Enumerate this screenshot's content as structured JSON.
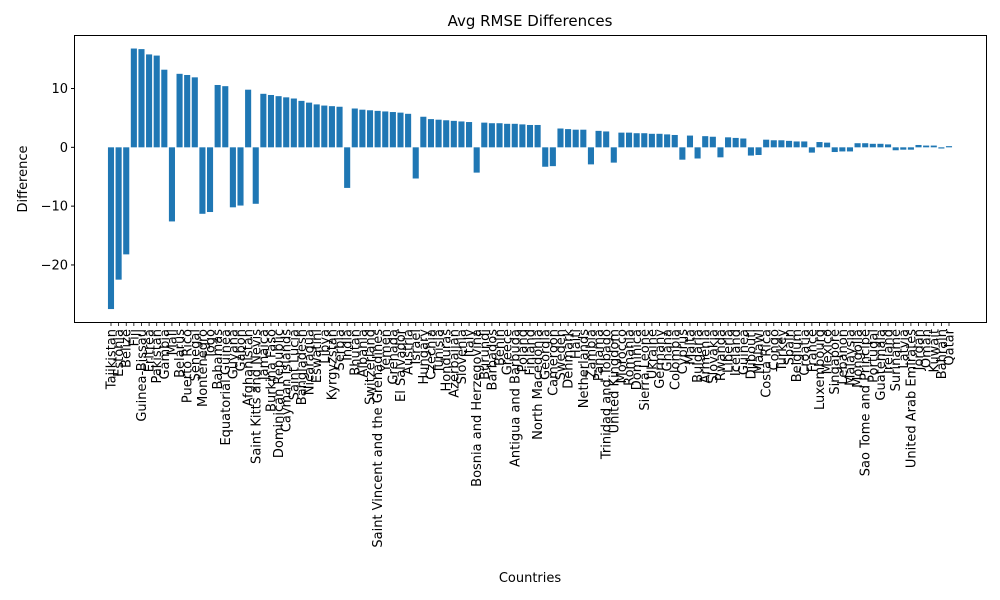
{
  "chart_data": {
    "type": "bar",
    "title": "Avg RMSE Differences",
    "xlabel": "Countries",
    "ylabel": "Difference",
    "ylim": [
      -29.7,
      19.1
    ],
    "yticks": [
      -20,
      -10,
      0,
      10
    ],
    "ytick_labels": [
      "−20",
      "−10",
      "0",
      "10"
    ],
    "grid": false,
    "color": "#1f77b4",
    "categories": [
      "Tajikistan",
      "Estonia",
      "Belize",
      "Fiji",
      "Guinea-Bissau",
      "Eritrea",
      "Pakistan",
      "Gambia",
      "Mali",
      "Belarus",
      "Puerto Rico",
      "Senegal",
      "Montenegro",
      "Togo",
      "Bahamas",
      "Equatorial Guinea",
      "Guyana",
      "Gabon",
      "Afghanistan",
      "Saint Kitts and Nevis",
      "Jamaica",
      "Burkina Faso",
      "Dominican Republic",
      "Cayman Islands",
      "Saint Lucia",
      "Bangladesh",
      "Nicaragua",
      "Eswatini",
      "Libya",
      "Kyrgyzstan",
      "Serbia",
      "India",
      "Bhutan",
      "Albania",
      "Switzerland",
      "Saint Vincent and the Grenadines",
      "Yemen",
      "Grenada",
      "El Salvador",
      "Austria",
      "Israel",
      "Hungary",
      "Czechia",
      "Tunisia",
      "Honduras",
      "Azerbaijan",
      "Slovenia",
      "Italy",
      "Bosnia and Herzegovina",
      "Burundi",
      "Barbados",
      "Benin",
      "Greece",
      "Antigua and Barbuda",
      "Poland",
      "Finland",
      "North Macedonia",
      "Georgia",
      "Cameroon",
      "Sweden",
      "Denmark",
      "Haiti",
      "Netherlands",
      "Zambia",
      "Panama",
      "Trinidad and Tobago",
      "United Kingdom",
      "Morocco",
      "Romania",
      "Dominica",
      "Sierra Leone",
      "Ukraine",
      "Germany",
      "Ghana",
      "Colombia",
      "Cyprus",
      "Malta",
      "Bulgaria",
      "Armenia",
      "Slovakia",
      "Rwanda",
      "Liberia",
      "Iceland",
      "Guinea",
      "Djibouti",
      "Malawi",
      "Costa Rica",
      "Congo",
      "Turkey",
      "Spain",
      "Belgium",
      "Croatia",
      "France",
      "Luxembourg",
      "Mexico",
      "Singapore",
      "Lebanon",
      "Malaysia",
      "Mongolia",
      "Sao Tome and Principe",
      "Portugal",
      "Guatemala",
      "Ireland",
      "Suriname",
      "Latvia",
      "United Arab Emirates",
      "Jordan",
      "Oman",
      "Kuwait",
      "Bahrain",
      "Qatar"
    ],
    "values": [
      -27.5,
      -22.5,
      -18.2,
      16.8,
      16.7,
      15.8,
      15.6,
      13.2,
      -12.6,
      12.5,
      12.3,
      11.9,
      -11.3,
      -11.0,
      10.6,
      10.4,
      -10.2,
      -9.9,
      9.8,
      -9.6,
      9.1,
      8.9,
      8.7,
      8.5,
      8.3,
      7.9,
      7.6,
      7.3,
      7.1,
      7.0,
      6.9,
      -6.9,
      6.6,
      6.4,
      6.3,
      6.2,
      6.1,
      6.0,
      5.9,
      5.7,
      -5.3,
      5.2,
      4.8,
      4.7,
      4.6,
      4.5,
      4.4,
      4.3,
      -4.3,
      4.2,
      4.1,
      4.1,
      4.0,
      4.0,
      3.9,
      3.8,
      3.8,
      -3.3,
      -3.2,
      3.2,
      3.1,
      3.0,
      3.0,
      -2.9,
      2.8,
      2.7,
      -2.6,
      2.5,
      2.5,
      2.4,
      2.4,
      2.3,
      2.3,
      2.2,
      2.1,
      -2.1,
      2.0,
      -1.9,
      1.9,
      1.8,
      -1.7,
      1.7,
      1.6,
      1.5,
      -1.4,
      -1.3,
      1.3,
      1.2,
      1.2,
      1.1,
      1.0,
      1.0,
      -0.9,
      0.9,
      0.8,
      -0.8,
      -0.7,
      -0.7,
      0.7,
      0.7,
      0.6,
      0.6,
      0.5,
      -0.5,
      -0.4,
      -0.4,
      0.4,
      0.3,
      0.3,
      -0.2,
      0.2
    ]
  }
}
